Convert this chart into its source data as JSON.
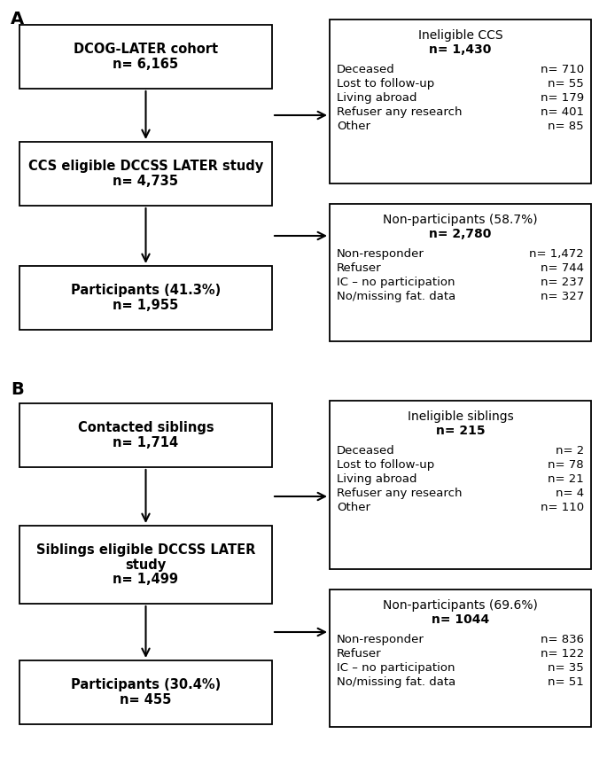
{
  "section_A_label": "A",
  "section_B_label": "B",
  "panel_A": {
    "box1": {
      "lines": [
        "DCOG-LATER cohort",
        "n= 6,165"
      ],
      "bold": [
        0,
        1
      ]
    },
    "box2": {
      "lines": [
        "CCS eligible DCCSS LATER study",
        "n= 4,735"
      ],
      "bold": [
        0,
        1
      ]
    },
    "box3": {
      "lines": [
        "Participants (41.3%)",
        "n= 1,955"
      ],
      "bold": [
        0,
        1
      ]
    },
    "info_box1": {
      "title1": "Ineligible CCS",
      "title2": "n= 1,430",
      "rows": [
        [
          "Deceased",
          "n= 710"
        ],
        [
          "Lost to follow-up",
          "n= 55"
        ],
        [
          "Living abroad",
          "n= 179"
        ],
        [
          "Refuser any research",
          "n= 401"
        ],
        [
          "Other",
          "n= 85"
        ]
      ]
    },
    "info_box2": {
      "title1": "Non-participants (58.7%)",
      "title2": "n= 2,780",
      "rows": [
        [
          "Non-responder",
          "n= 1,472"
        ],
        [
          "Refuser",
          "n= 744"
        ],
        [
          "IC – no participation",
          "n= 237"
        ],
        [
          "No/missing fat. data",
          "n= 327"
        ]
      ]
    }
  },
  "panel_B": {
    "box1": {
      "lines": [
        "Contacted siblings",
        "n= 1,714"
      ],
      "bold": [
        0,
        1
      ]
    },
    "box2": {
      "lines": [
        "Siblings eligible DCCSS LATER",
        "study",
        "n= 1,499"
      ],
      "bold": [
        0,
        1,
        2
      ]
    },
    "box3": {
      "lines": [
        "Participants (30.4%)",
        "n= 455"
      ],
      "bold": [
        0,
        1
      ]
    },
    "info_box1": {
      "title1": "Ineligible siblings",
      "title2": "n= 215",
      "rows": [
        [
          "Deceased",
          "n= 2"
        ],
        [
          "Lost to follow-up",
          "n= 78"
        ],
        [
          "Living abroad",
          "n= 21"
        ],
        [
          "Refuser any research",
          "n= 4"
        ],
        [
          "Other",
          "n= 110"
        ]
      ]
    },
    "info_box2": {
      "title1": "Non-participants (69.6%)",
      "title2": "n= 1044",
      "rows": [
        [
          "Non-responder",
          "n= 836"
        ],
        [
          "Refuser",
          "n= 122"
        ],
        [
          "IC – no participation",
          "n= 35"
        ],
        [
          "No/missing fat. data",
          "n= 51"
        ]
      ]
    }
  }
}
